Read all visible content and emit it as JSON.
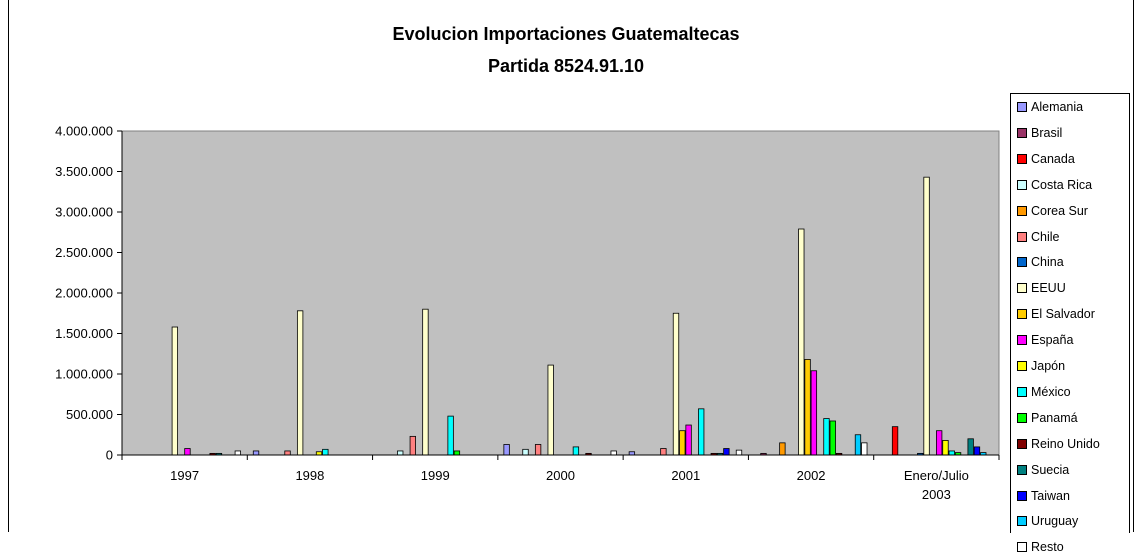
{
  "chart_data": {
    "type": "bar",
    "title": "Evolucion Importaciones Guatemaltecas",
    "subtitle": "Partida 8524.91.10",
    "categories": [
      "1997",
      "1998",
      "1999",
      "2000",
      "2001",
      "2002",
      "Enero/Julio 2003"
    ],
    "ylim": [
      0,
      4000000
    ],
    "yticks": [
      "0",
      "500.000",
      "1.000.000",
      "1.500.000",
      "2.000.000",
      "2.500.000",
      "3.000.000",
      "3.500.000",
      "4.000.000"
    ],
    "grid": false,
    "legend_position": "right",
    "plot_background": "#c0c0c0",
    "series": [
      {
        "name": "Alemania",
        "color": "#9999ff",
        "values": [
          0,
          50000,
          0,
          130000,
          40000,
          0,
          0
        ]
      },
      {
        "name": "Brasil",
        "color": "#993366",
        "values": [
          0,
          0,
          0,
          0,
          0,
          20000,
          0
        ]
      },
      {
        "name": "Canada",
        "color": "#ff0000",
        "values": [
          0,
          0,
          0,
          0,
          0,
          0,
          350000
        ]
      },
      {
        "name": "Costa Rica",
        "color": "#ccffff",
        "values": [
          0,
          0,
          50000,
          70000,
          0,
          0,
          0
        ]
      },
      {
        "name": "Corea Sur",
        "color": "#ff9900",
        "values": [
          0,
          0,
          0,
          0,
          0,
          150000,
          0
        ]
      },
      {
        "name": "Chile",
        "color": "#ff8080",
        "values": [
          0,
          50000,
          230000,
          130000,
          80000,
          0,
          0
        ]
      },
      {
        "name": "China",
        "color": "#0066cc",
        "values": [
          0,
          0,
          0,
          0,
          0,
          0,
          20000
        ]
      },
      {
        "name": "EEUU",
        "color": "#ffffcc",
        "values": [
          1580000,
          1780000,
          1800000,
          1110000,
          1750000,
          2790000,
          3430000
        ]
      },
      {
        "name": "El Salvador",
        "color": "#ffcc00",
        "values": [
          0,
          0,
          0,
          0,
          300000,
          1180000,
          0
        ]
      },
      {
        "name": "España",
        "color": "#ff00ff",
        "values": [
          80000,
          0,
          0,
          0,
          370000,
          1040000,
          300000
        ]
      },
      {
        "name": "Japón",
        "color": "#ffff00",
        "values": [
          0,
          40000,
          0,
          0,
          0,
          0,
          180000
        ]
      },
      {
        "name": "México",
        "color": "#00ffff",
        "values": [
          0,
          70000,
          480000,
          100000,
          570000,
          450000,
          50000
        ]
      },
      {
        "name": "Panamá",
        "color": "#00ff00",
        "values": [
          0,
          0,
          50000,
          0,
          0,
          420000,
          30000
        ]
      },
      {
        "name": "Reino Unido",
        "color": "#800000",
        "values": [
          20000,
          0,
          0,
          20000,
          20000,
          20000,
          0
        ]
      },
      {
        "name": "Suecia",
        "color": "#008080",
        "values": [
          20000,
          0,
          0,
          0,
          20000,
          0,
          200000
        ]
      },
      {
        "name": "Taiwan",
        "color": "#0000ff",
        "values": [
          0,
          0,
          0,
          0,
          80000,
          0,
          100000
        ]
      },
      {
        "name": "Uruguay",
        "color": "#00ccff",
        "values": [
          0,
          0,
          0,
          0,
          0,
          250000,
          30000
        ]
      },
      {
        "name": "Resto",
        "color": "#ffffff",
        "values": [
          50000,
          0,
          0,
          50000,
          60000,
          150000,
          0
        ]
      }
    ]
  }
}
